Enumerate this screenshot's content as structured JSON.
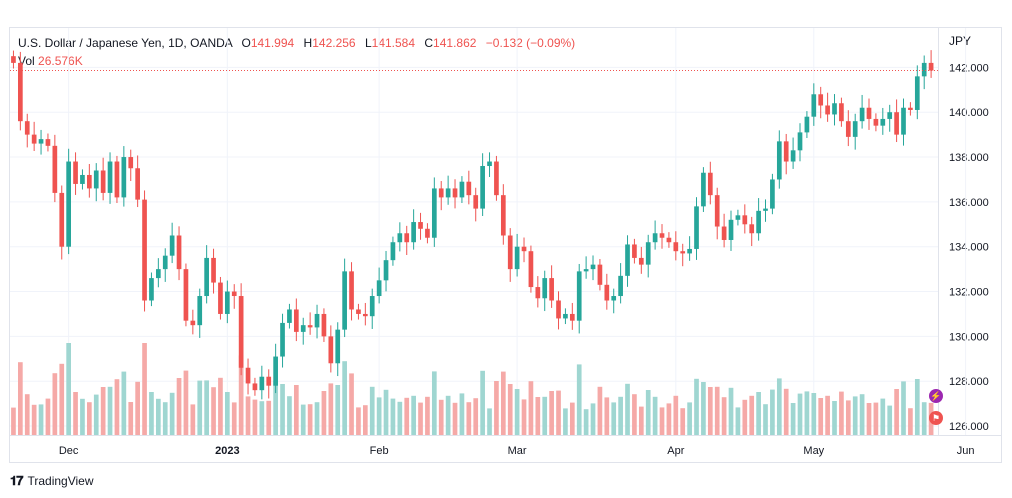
{
  "header": {
    "symbol": "U.S. Dollar / Japanese Yen, 1D, OANDA",
    "o_label": "O",
    "o_value": "141.994",
    "h_label": "H",
    "h_value": "142.256",
    "l_label": "L",
    "l_value": "141.584",
    "c_label": "C",
    "c_value": "141.862",
    "change": "−0.132 (−0.09%)",
    "vol_label": "Vol",
    "vol_value": "26.576K",
    "unit": "JPY"
  },
  "footer": {
    "brand": "TradingView"
  },
  "colors": {
    "up": "#26a69a",
    "down": "#ef5350",
    "vol_up": "#9fd6d1",
    "vol_down": "#f5a9a7",
    "grid": "#f0f3fa"
  },
  "chart_data": {
    "type": "candlestick",
    "title": "U.S. Dollar / Japanese Yen, 1D, OANDA",
    "ylabel": "JPY",
    "ylim": [
      125.6,
      143.4
    ],
    "yticks": [
      "142.000",
      "140.000",
      "138.000",
      "136.000",
      "134.000",
      "132.000",
      "130.000",
      "128.000",
      "126.000"
    ],
    "xticks": [
      {
        "label": "Dec",
        "index": 8
      },
      {
        "label": "2023",
        "index": 31
      },
      {
        "label": "Feb",
        "index": 53
      },
      {
        "label": "Mar",
        "index": 73
      },
      {
        "label": "Apr",
        "index": 96
      },
      {
        "label": "May",
        "index": 116
      },
      {
        "label": "Jun",
        "index": 138
      }
    ],
    "last_price": 141.862,
    "closes": [
      142.2,
      139.6,
      139.0,
      138.6,
      138.8,
      138.5,
      136.4,
      134.0,
      137.8,
      136.8,
      137.2,
      136.6,
      137.4,
      136.4,
      137.8,
      136.2,
      138.0,
      137.5,
      136.1,
      131.6,
      132.6,
      133.0,
      133.6,
      134.5,
      133.0,
      130.7,
      130.5,
      131.8,
      133.5,
      132.4,
      131.0,
      132.0,
      131.8,
      128.6,
      127.9,
      127.6,
      128.2,
      127.8,
      129.1,
      130.6,
      131.2,
      130.2,
      130.5,
      130.4,
      131.0,
      130.0,
      128.8,
      130.3,
      132.9,
      131.2,
      131.0,
      130.9,
      131.8,
      132.5,
      133.4,
      134.2,
      134.6,
      134.2,
      135.1,
      134.8,
      134.4,
      136.6,
      136.2,
      136.6,
      136.2,
      136.9,
      136.3,
      135.7,
      137.6,
      137.8,
      136.3,
      134.5,
      133.0,
      134.0,
      133.8,
      132.2,
      131.7,
      132.6,
      131.6,
      130.8,
      131.0,
      130.7,
      132.9,
      133.0,
      133.2,
      132.3,
      131.6,
      131.8,
      132.7,
      134.1,
      133.5,
      133.2,
      134.2,
      134.6,
      134.4,
      134.2,
      133.8,
      133.7,
      133.9,
      135.8,
      137.3,
      136.3,
      134.9,
      134.3,
      135.2,
      135.4,
      135.0,
      134.6,
      135.6,
      135.7,
      137.0,
      138.7,
      137.8,
      138.3,
      139.1,
      139.8,
      140.8,
      140.3,
      139.9,
      140.4,
      139.6,
      138.9,
      139.6,
      140.2,
      139.7,
      139.4,
      139.7,
      140.0,
      139.0,
      140.2,
      140.1,
      141.6,
      142.2,
      141.86
    ],
    "opens": null,
    "volume_note": "volume bars scaled relative; green when close >= prev close"
  }
}
